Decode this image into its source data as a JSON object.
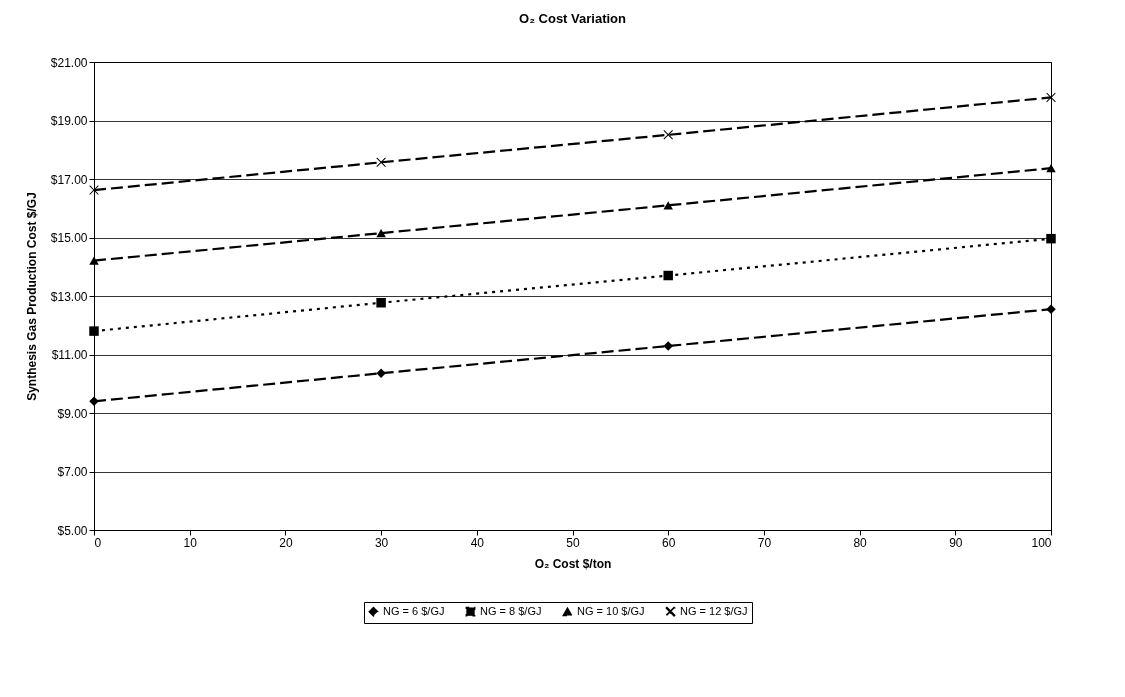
{
  "chart_data": {
    "type": "line",
    "title": "O₂ Cost Variation",
    "xlabel": "O₂ Cost $/ton",
    "ylabel": "Synthesis Gas  Production Cost $/GJ",
    "x": [
      0,
      30,
      60,
      100
    ],
    "series": [
      {
        "name": "NG = 6 $/GJ",
        "color": "#000000",
        "marker": "diamond",
        "line_style": "dashed",
        "values": [
          9.4,
          10.36,
          11.29,
          12.55
        ]
      },
      {
        "name": "NG = 8 $/GJ",
        "color": "#000000",
        "marker": "square",
        "line_style": "dotted",
        "values": [
          11.8,
          12.77,
          13.7,
          14.96
        ]
      },
      {
        "name": "NG = 10 $/GJ",
        "color": "#000000",
        "marker": "triangle",
        "line_style": "dashed",
        "values": [
          14.21,
          15.15,
          16.1,
          17.37
        ]
      },
      {
        "name": "NG = 12 $/GJ",
        "color": "#000000",
        "marker": "cross",
        "line_style": "dashed",
        "values": [
          16.62,
          17.57,
          18.51,
          19.79
        ]
      }
    ],
    "xlim": [
      0,
      100
    ],
    "xticks": [
      0,
      10,
      20,
      30,
      40,
      50,
      60,
      70,
      80,
      90,
      100
    ],
    "ylim": [
      5,
      21
    ],
    "yticks": [
      {
        "value": 5,
        "label": "$5.00"
      },
      {
        "value": 7,
        "label": "$7.00"
      },
      {
        "value": 9,
        "label": "$9.00"
      },
      {
        "value": 11,
        "label": "$11.00"
      },
      {
        "value": 13,
        "label": "$13.00"
      },
      {
        "value": 15,
        "label": "$15.00"
      },
      {
        "value": 17,
        "label": "$17.00"
      },
      {
        "value": 19,
        "label": "$19.00"
      },
      {
        "value": 21,
        "label": "$21.00"
      }
    ],
    "grid": "y",
    "legend": "bottom"
  }
}
